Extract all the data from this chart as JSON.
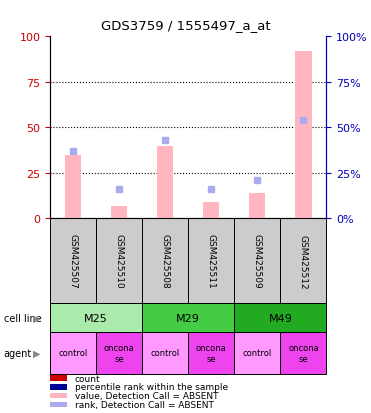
{
  "title": "GDS3759 / 1555497_a_at",
  "samples": [
    "GSM425507",
    "GSM425510",
    "GSM425508",
    "GSM425511",
    "GSM425509",
    "GSM425512"
  ],
  "count_values": [
    35,
    7,
    40,
    9,
    14,
    92
  ],
  "rank_values": [
    37,
    16,
    43,
    16,
    21,
    54
  ],
  "cell_lines": [
    {
      "label": "M25",
      "span": [
        0,
        2
      ],
      "color": "#AAEAAA"
    },
    {
      "label": "M29",
      "span": [
        2,
        4
      ],
      "color": "#44CC44"
    },
    {
      "label": "M49",
      "span": [
        4,
        6
      ],
      "color": "#22AA22"
    }
  ],
  "agent_labels": [
    "control",
    "oncona\nse",
    "control",
    "oncona\nse",
    "control",
    "oncona\nse"
  ],
  "agent_colors": [
    "#FF99FF",
    "#EE44EE",
    "#FF99FF",
    "#EE44EE",
    "#FF99FF",
    "#EE44EE"
  ],
  "ylim": [
    0,
    100
  ],
  "yticks": [
    0,
    25,
    50,
    75,
    100
  ],
  "bar_width": 0.35,
  "count_color_absent": "#FFB6C1",
  "rank_color_absent": "#AAAAEE",
  "count_color_solid": "#CC0000",
  "rank_color_solid": "#000099",
  "left_axis_color": "#CC0000",
  "right_axis_color": "#0000BB",
  "sample_bg": "#CCCCCC",
  "legend_items": [
    {
      "color": "#CC0000",
      "label": "count"
    },
    {
      "color": "#000099",
      "label": "percentile rank within the sample"
    },
    {
      "color": "#FFB6C1",
      "label": "value, Detection Call = ABSENT"
    },
    {
      "color": "#AAAAEE",
      "label": "rank, Detection Call = ABSENT"
    }
  ]
}
